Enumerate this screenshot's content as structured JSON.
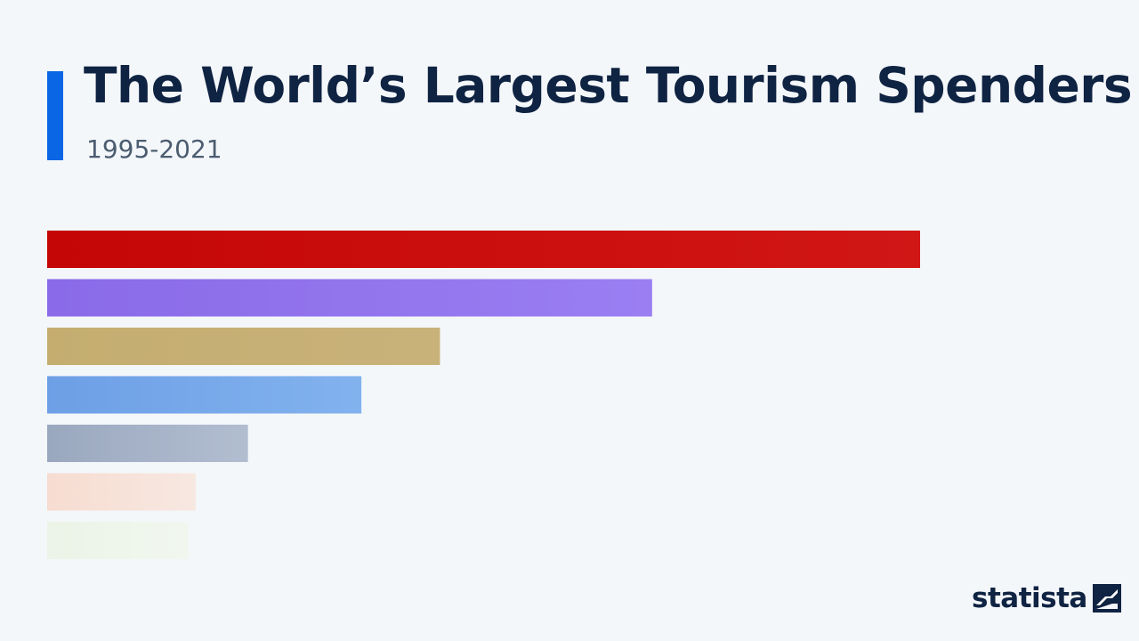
{
  "header": {
    "title": "The World’s Largest Tourism Spenders",
    "subtitle": "1995-2021"
  },
  "brand": {
    "name": "statista",
    "icon": "statista-logo-icon"
  },
  "colors": {
    "accent": "#0a66e4",
    "title": "#0f2342"
  },
  "chart_data": {
    "type": "bar",
    "orientation": "horizontal",
    "title": "The World’s Largest Tourism Spenders",
    "subtitle": "1995-2021",
    "xlim": [
      0,
      100
    ],
    "grid": false,
    "legend": "none",
    "series": [
      {
        "values": [
          100,
          69.3,
          45,
          36,
          23,
          17,
          16.2
        ]
      }
    ],
    "bar_colors": [
      {
        "from": "#c40606",
        "to": "#d11616",
        "opacity": 1
      },
      {
        "from": "#8a6ae8",
        "to": "#9a7ef2",
        "opacity": 1
      },
      {
        "from": "#c4ad6f",
        "to": "#c9b27a",
        "opacity": 1
      },
      {
        "from": "#6d9fe6",
        "to": "#82b2ee",
        "opacity": 1
      },
      {
        "from": "#9aa8bf",
        "to": "#b2bdd0",
        "opacity": 1
      },
      {
        "from": "#f7d9cc",
        "to": "#f7e6de",
        "opacity": 0.9
      },
      {
        "from": "#e7f2df",
        "to": "#f0f7ea",
        "opacity": 0.7
      }
    ]
  }
}
